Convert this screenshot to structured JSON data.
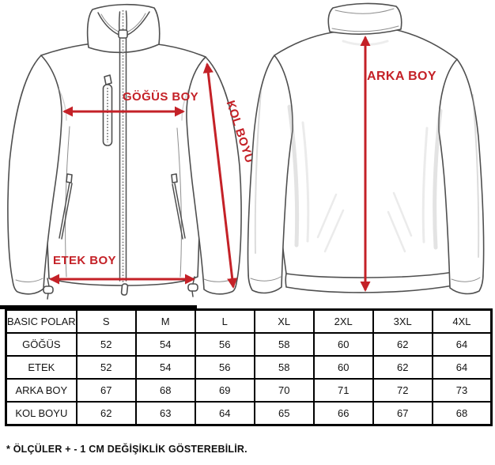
{
  "colors": {
    "accent_red": "#c42127",
    "line_gray": "#4f4f4f",
    "table_border": "#000000",
    "text": "#141414",
    "background": "#ffffff"
  },
  "diagram": {
    "front_view": {
      "chest_width_label": "GÖĞÜS BOY",
      "hem_width_label": "ETEK BOY",
      "sleeve_length_label": "KOL BOYU"
    },
    "back_view": {
      "back_length_label": "ARKA BOY"
    }
  },
  "size_table": {
    "product_label": "BASIC POLAR",
    "columns": [
      "S",
      "M",
      "L",
      "XL",
      "2XL",
      "3XL",
      "4XL"
    ],
    "rows": [
      {
        "label": "GÖĞÜS",
        "values": [
          "52",
          "54",
          "56",
          "58",
          "60",
          "62",
          "64"
        ]
      },
      {
        "label": "ETEK",
        "values": [
          "52",
          "54",
          "56",
          "58",
          "60",
          "62",
          "64"
        ]
      },
      {
        "label": "ARKA BOY",
        "values": [
          "67",
          "68",
          "69",
          "70",
          "71",
          "72",
          "73"
        ]
      },
      {
        "label": "KOL BOYU",
        "values": [
          "62",
          "63",
          "64",
          "65",
          "66",
          "67",
          "68"
        ]
      }
    ]
  },
  "footnote": "* ÖLÇÜLER + - 1 CM DEĞİŞİKLİK GÖSTEREBİLİR."
}
